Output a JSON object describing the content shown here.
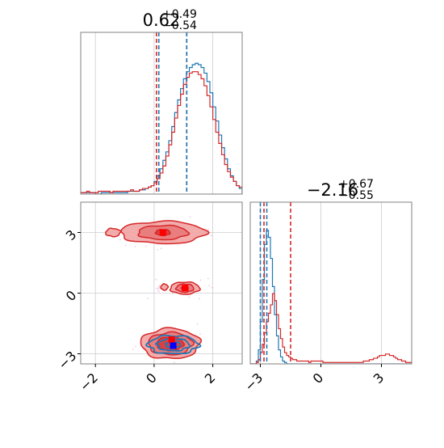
{
  "chart_data": [
    {
      "panel": "marginal-x",
      "type": "histogram",
      "title": {
        "value": "0.62",
        "plus": "+0.49",
        "minus": "−0.54"
      },
      "xlim": [
        -2.5,
        3.0
      ],
      "ylim": [
        0,
        1.15
      ],
      "grid": true,
      "ticks": [
        -2,
        0,
        2
      ],
      "series": [
        {
          "color": "#1f77b4",
          "bin_start": -2.5,
          "bin_width": 0.1,
          "counts": [
            0.01,
            0.01,
            0.01,
            0.01,
            0.01,
            0,
            0,
            0.01,
            0.01,
            0.01,
            0.01,
            0.01,
            0.01,
            0.01,
            0.01,
            0.01,
            0.02,
            0.02,
            0.02,
            0.02,
            0.03,
            0.03,
            0.04,
            0.05,
            0.06,
            0.09,
            0.13,
            0.18,
            0.24,
            0.3,
            0.38,
            0.48,
            0.58,
            0.67,
            0.75,
            0.82,
            0.87,
            0.9,
            0.92,
            0.93,
            0.92,
            0.9,
            0.86,
            0.8,
            0.72,
            0.62,
            0.52,
            0.42,
            0.33,
            0.25,
            0.18,
            0.13,
            0.09,
            0.06,
            0.04
          ]
        },
        {
          "color": "#d62728",
          "bin_start": -2.5,
          "bin_width": 0.1,
          "counts": [
            0.01,
            0.01,
            0.02,
            0.01,
            0.01,
            0.01,
            0.02,
            0.02,
            0.02,
            0.02,
            0.01,
            0.02,
            0.02,
            0.02,
            0.02,
            0.02,
            0.02,
            0.03,
            0.02,
            0.02,
            0.03,
            0.04,
            0.04,
            0.05,
            0.06,
            0.08,
            0.11,
            0.15,
            0.2,
            0.27,
            0.35,
            0.44,
            0.54,
            0.63,
            0.71,
            0.78,
            0.83,
            0.86,
            0.87,
            0.87,
            0.85,
            0.82,
            0.77,
            0.7,
            0.62,
            0.53,
            0.44,
            0.36,
            0.28,
            0.21,
            0.16,
            0.12,
            0.09,
            0.06,
            0.05
          ]
        }
      ],
      "quantile_lines": [
        {
          "color": "#d62728",
          "values": [
            0.08,
            1.11
          ]
        },
        {
          "color": "#1f77b4",
          "values": [
            0.16,
            1.11
          ]
        }
      ]
    },
    {
      "panel": "marginal-y",
      "type": "histogram",
      "title": {
        "value": "−2.16",
        "plus": "+0.67",
        "minus": "−0.55"
      },
      "xlim": [
        -3.5,
        4.5
      ],
      "ylim": [
        0,
        1.15
      ],
      "grid": true,
      "ticks": [
        -3,
        0,
        3
      ],
      "series": [
        {
          "color": "#1f77b4",
          "bin_start": -3.5,
          "bin_width": 0.1,
          "counts": [
            0,
            0,
            0,
            0.02,
            0.1,
            0.3,
            0.6,
            0.85,
            0.95,
            0.9,
            0.75,
            0.55,
            0.35,
            0.2,
            0.1,
            0.05,
            0.02,
            0.01,
            0,
            0,
            0,
            0,
            0,
            0,
            0,
            0,
            0,
            0,
            0,
            0,
            0,
            0,
            0,
            0,
            0,
            0,
            0,
            0,
            0,
            0,
            0,
            0,
            0,
            0,
            0,
            0,
            0,
            0,
            0,
            0,
            0,
            0,
            0,
            0,
            0,
            0,
            0,
            0,
            0,
            0,
            0,
            0,
            0,
            0,
            0,
            0,
            0,
            0,
            0,
            0,
            0,
            0,
            0,
            0,
            0,
            0,
            0,
            0,
            0,
            0
          ]
        },
        {
          "color": "#d62728",
          "bin_start": -3.5,
          "bin_width": 0.1,
          "counts": [
            0,
            0,
            0,
            0.01,
            0.03,
            0.08,
            0.14,
            0.22,
            0.3,
            0.36,
            0.42,
            0.5,
            0.45,
            0.35,
            0.25,
            0.18,
            0.12,
            0.08,
            0.06,
            0.05,
            0.04,
            0.03,
            0.03,
            0.02,
            0.02,
            0.02,
            0.02,
            0.02,
            0.02,
            0.01,
            0.02,
            0.02,
            0.02,
            0.02,
            0.02,
            0.02,
            0.01,
            0.01,
            0.01,
            0.01,
            0.01,
            0.01,
            0.01,
            0.01,
            0.01,
            0.01,
            0.01,
            0.01,
            0.01,
            0.01,
            0.01,
            0.01,
            0.01,
            0.01,
            0.01,
            0.01,
            0.02,
            0.02,
            0.02,
            0.03,
            0.03,
            0.04,
            0.04,
            0.05,
            0.06,
            0.06,
            0.06,
            0.07,
            0.07,
            0.06,
            0.06,
            0.05,
            0.04,
            0.03,
            0.03,
            0.02,
            0.02,
            0.01,
            0.01,
            0.01
          ]
        }
      ],
      "quantile_lines": [
        {
          "color": "#1f77b4",
          "values": [
            -3.0,
            -2.68
          ]
        },
        {
          "color": "#d62728",
          "values": [
            -2.82,
            -1.5
          ]
        }
      ]
    },
    {
      "panel": "joint",
      "type": "contour",
      "xlim": [
        -2.5,
        3.0
      ],
      "ylim": [
        -3.5,
        4.5
      ],
      "grid": true,
      "xticks": [
        -2,
        0,
        2
      ],
      "yticks": [
        -3,
        0,
        3
      ],
      "red_modes": [
        {
          "cx": 0.55,
          "cy": -2.5,
          "rx": [
            1.0,
            0.75,
            0.45
          ],
          "ry": [
            0.75,
            0.55,
            0.35
          ]
        },
        {
          "cx": 0.3,
          "cy": 3.0,
          "rx": [
            1.45,
            0.85,
            0.25
          ],
          "ry": [
            0.55,
            0.35,
            0.15
          ]
        },
        {
          "cx": 1.05,
          "cy": 0.25,
          "rx": [
            0.5,
            0.3,
            0.12
          ],
          "ry": [
            0.3,
            0.2,
            0.1
          ]
        }
      ],
      "red_islands": [
        {
          "cx": -1.4,
          "cy": 3.0,
          "rx": 0.25,
          "ry": 0.2
        },
        {
          "cx": 0.35,
          "cy": 0.3,
          "rx": 0.12,
          "ry": 0.15
        }
      ],
      "blue_mode": {
        "cx": 0.65,
        "cy": -2.55,
        "rx": [
          0.85,
          0.55,
          0.25
        ],
        "ry": [
          0.45,
          0.3,
          0.15
        ]
      },
      "red_markers": [
        [
          0.6,
          -2.3
        ],
        [
          0.3,
          3.0
        ],
        [
          1.05,
          0.25
        ]
      ],
      "blue_markers": [
        [
          0.65,
          -2.6
        ]
      ],
      "colors": {
        "red": "#d62728",
        "red_fill": "#f2a3a3",
        "blue": "#1f77b4",
        "blue_marker": "#0000ff",
        "red_marker": "#ff0000",
        "scatter": "#e69ad0"
      }
    }
  ]
}
